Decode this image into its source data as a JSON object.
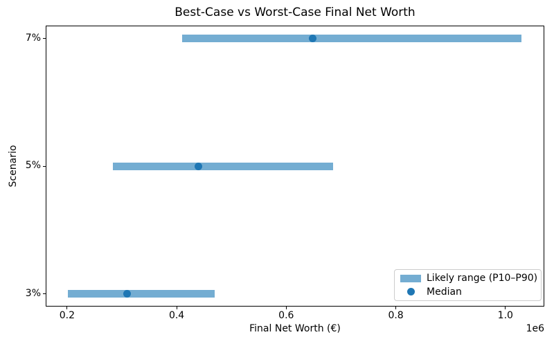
{
  "chart_data": {
    "type": "bar",
    "subtype": "horizontal-range-bars-with-median-dots",
    "title": "Best-Case vs Worst-Case Final Net Worth",
    "xlabel": "Final Net Worth (€)",
    "ylabel": "Scenario",
    "categories": [
      "3%",
      "5%",
      "7%"
    ],
    "series": [
      {
        "name": "P10 (range start)",
        "values": [
          202000,
          284000,
          410000
        ]
      },
      {
        "name": "Median",
        "values": [
          309000,
          440000,
          648000
        ]
      },
      {
        "name": "P90 (range end)",
        "values": [
          469000,
          685000,
          1029000
        ]
      }
    ],
    "xlim": [
      161000,
      1071000
    ],
    "ylim": [
      -0.1,
      2.1
    ],
    "x_ticks": [
      200000,
      400000,
      600000,
      800000,
      1000000
    ],
    "x_tick_labels": [
      "0.2",
      "0.4",
      "0.6",
      "0.8",
      "1.0"
    ],
    "x_offset_text": "1e6",
    "grid": false,
    "legend": {
      "position": "lower right",
      "entries": [
        {
          "label": "Likely range (P10–P90)",
          "marker": "patch",
          "color": "#74add2"
        },
        {
          "label": "Median",
          "marker": "dot",
          "color": "#1f77b4"
        }
      ]
    },
    "colors": {
      "bar_fill": "#74add2",
      "median_dot": "#1f77b4",
      "text": "#000000",
      "spines": "#000000",
      "legend_border": "#cccccc",
      "background": "#ffffff"
    }
  }
}
